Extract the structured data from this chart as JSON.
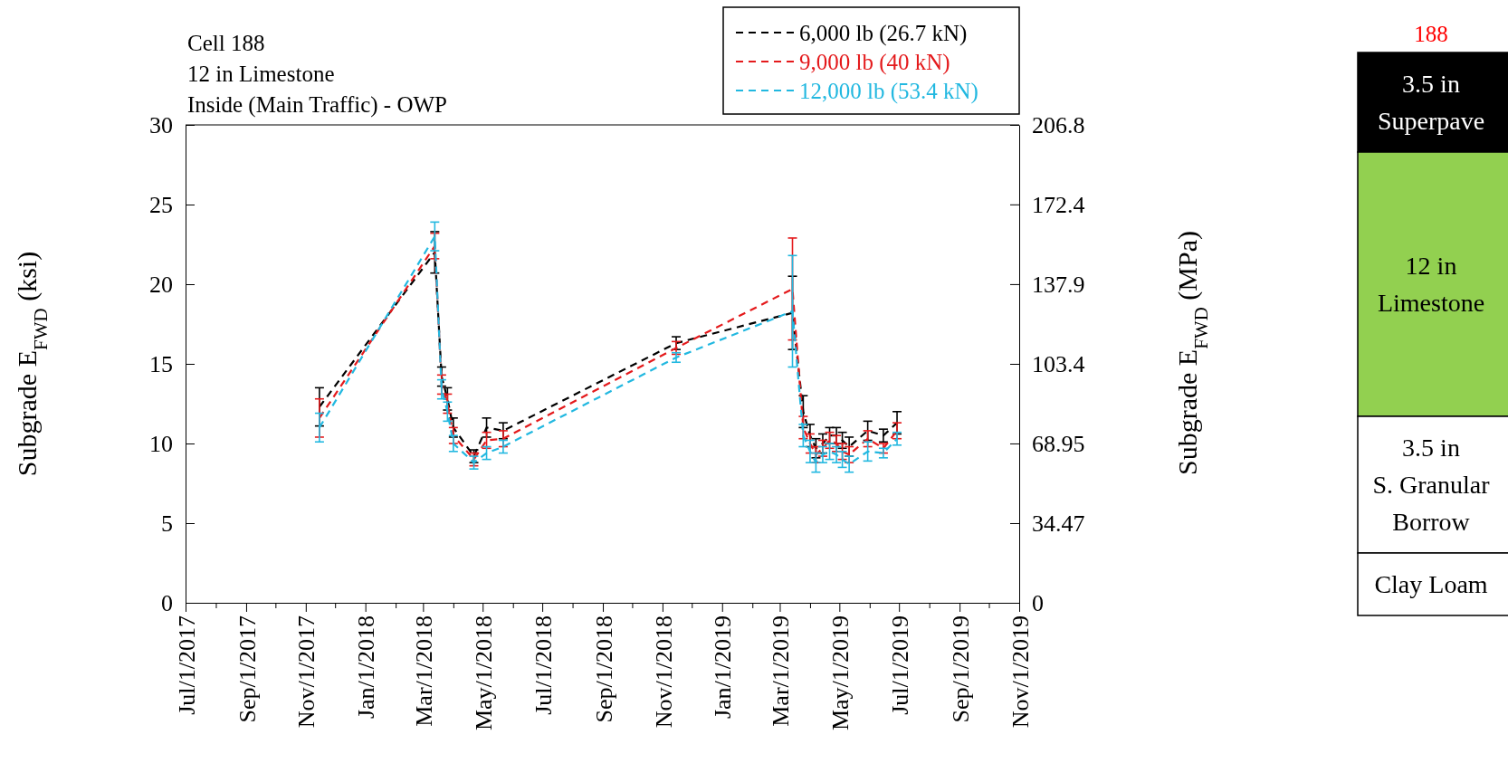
{
  "chart_data": [
    {
      "type": "line",
      "title": "Cell 188",
      "subtitle": "12 in Limestone",
      "annotations": [
        "Inside (Main Traffic) - OWP"
      ],
      "ylabel": "Subgrade E$_{FWD}$ (ksi)",
      "y2label": "Subgrade E$_{FWD}$ (MPa)",
      "x": [
        "2017-11-15",
        "2018-03-13",
        "2018-03-20",
        "2018-03-26",
        "2018-04-01",
        "2018-04-22",
        "2018-05-05",
        "2018-05-22",
        "2018-11-15",
        "2019-03-14",
        "2019-03-25",
        "2019-04-01",
        "2019-04-07",
        "2019-04-14",
        "2019-04-21",
        "2019-04-28",
        "2019-05-04",
        "2019-05-11",
        "2019-05-30",
        "2019-06-15",
        "2019-06-29"
      ],
      "series": [
        {
          "name": "6,000 lb (26.7 kN)",
          "color": "#000000",
          "values": [
            12.3,
            22,
            14.2,
            12.8,
            11,
            9.2,
            11,
            10.8,
            16.3,
            18.2,
            12,
            10.5,
            9.7,
            10,
            10.5,
            10.5,
            10.2,
            9.8,
            10.8,
            10.5,
            11.3
          ],
          "errors": [
            1.2,
            1.3,
            0.6,
            0.7,
            0.6,
            0.4,
            0.6,
            0.5,
            0.4,
            2.3,
            1,
            0.7,
            0.6,
            0.6,
            0.5,
            0.5,
            0.5,
            0.6,
            0.6,
            0.4,
            0.7
          ]
        },
        {
          "name": "9,000 lb (40 kN)",
          "color": "#e41a1c",
          "values": [
            11.6,
            22.4,
            13.7,
            12.5,
            10.5,
            9,
            10.2,
            10.3,
            16,
            19.7,
            11,
            10,
            9.3,
            9.7,
            10.2,
            10,
            9.5,
            9.3,
            10.3,
            9.7,
            10.8
          ],
          "errors": [
            1.2,
            0.8,
            0.6,
            0.6,
            0.5,
            0.4,
            0.5,
            0.5,
            0.4,
            3.2,
            0.7,
            0.6,
            0.5,
            0.5,
            0.5,
            0.5,
            0.5,
            0.5,
            0.5,
            0.3,
            0.5
          ]
        },
        {
          "name": "12,000 lb (53.4 kN)",
          "color": "#22b8e0",
          "values": [
            11,
            23,
            13.4,
            12,
            10,
            8.8,
            9.4,
            9.8,
            15.4,
            18.3,
            10.5,
            9.5,
            8.8,
            9.3,
            9.5,
            9.3,
            9,
            8.7,
            9.5,
            9.4,
            10.3
          ],
          "errors": [
            0.9,
            0.9,
            0.6,
            0.6,
            0.5,
            0.4,
            0.4,
            0.4,
            0.3,
            3.5,
            0.7,
            0.7,
            0.6,
            0.5,
            0.5,
            0.5,
            0.5,
            0.5,
            0.6,
            0.3,
            0.4
          ]
        }
      ],
      "ylim": [
        0,
        30
      ],
      "yticks": [
        0,
        5,
        10,
        15,
        20,
        25,
        30
      ],
      "y2lim": [
        0,
        206.8
      ],
      "y2ticks": [
        0,
        34.47,
        68.95,
        103.4,
        137.9,
        172.4,
        206.8
      ],
      "xlim": [
        "2017-07-01",
        "2019-11-01"
      ],
      "xticks": [
        {
          "value": "2017-07-01",
          "label": "Jul/1/2017"
        },
        {
          "value": "2017-08-01",
          "label": null
        },
        {
          "value": "2017-09-01",
          "label": "Sep/1/2017"
        },
        {
          "value": "2017-10-01",
          "label": null
        },
        {
          "value": "2017-11-01",
          "label": "Nov/1/2017"
        },
        {
          "value": "2017-12-01",
          "label": null
        },
        {
          "value": "2018-01-01",
          "label": "Jan/1/2018"
        },
        {
          "value": "2018-02-01",
          "label": null
        },
        {
          "value": "2018-03-01",
          "label": "Mar/1/2018"
        },
        {
          "value": "2018-04-01",
          "label": null
        },
        {
          "value": "2018-05-01",
          "label": "May/1/2018"
        },
        {
          "value": "2018-06-01",
          "label": null
        },
        {
          "value": "2018-07-01",
          "label": "Jul/1/2018"
        },
        {
          "value": "2018-08-01",
          "label": null
        },
        {
          "value": "2018-09-01",
          "label": "Sep/1/2018"
        },
        {
          "value": "2018-10-01",
          "label": null
        },
        {
          "value": "2018-11-01",
          "label": "Nov/1/2018"
        },
        {
          "value": "2018-12-01",
          "label": null
        },
        {
          "value": "2019-01-01",
          "label": "Jan/1/2019"
        },
        {
          "value": "2019-02-01",
          "label": null
        },
        {
          "value": "2019-03-01",
          "label": "Mar/1/2019"
        },
        {
          "value": "2019-04-01",
          "label": null
        },
        {
          "value": "2019-05-01",
          "label": "May/1/2019"
        },
        {
          "value": "2019-06-01",
          "label": null
        },
        {
          "value": "2019-07-01",
          "label": "Jul/1/2019"
        },
        {
          "value": "2019-08-01",
          "label": null
        },
        {
          "value": "2019-09-01",
          "label": "Sep/1/2019"
        },
        {
          "value": "2019-10-01",
          "label": null
        },
        {
          "value": "2019-11-01",
          "label": "Nov/1/2019"
        }
      ],
      "grid": false,
      "legend": "top right",
      "marker": "none",
      "line_style": "dashed"
    },
    {
      "type": "other",
      "title": "188",
      "categories": [
        "3.5 in\nSuperpave",
        "12 in\nLimestone",
        "3.5 in\nS. Granular\nBorrow",
        "Clay Loam"
      ],
      "colors": [
        "#000000",
        "#92d050",
        "#ffffff",
        "#ffffff"
      ]
    }
  ]
}
